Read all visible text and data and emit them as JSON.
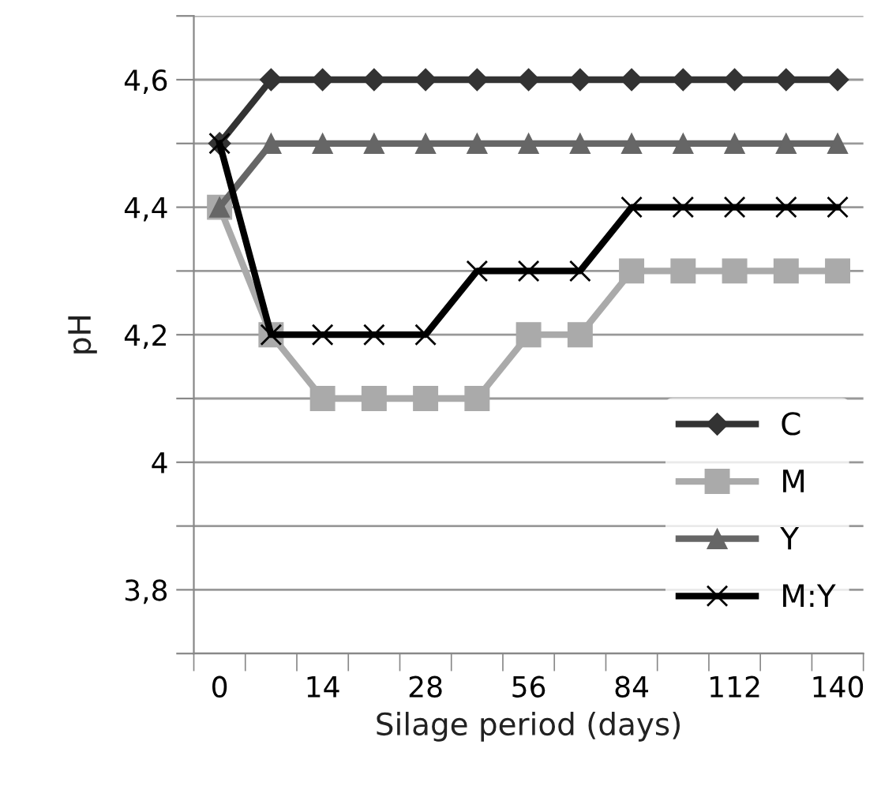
{
  "chart_data": {
    "type": "line",
    "xlabel": "Silage period (days)",
    "ylabel": "pH",
    "categories": [
      "0",
      null,
      "14",
      null,
      "28",
      null,
      "56",
      null,
      "84",
      null,
      "112",
      null,
      "140"
    ],
    "series": [
      {
        "name": "C",
        "color": "#333333",
        "marker": "diamond",
        "values": [
          4.5,
          4.6,
          4.6,
          4.6,
          4.6,
          4.6,
          4.6,
          4.6,
          4.6,
          4.6,
          4.6,
          4.6,
          4.6
        ]
      },
      {
        "name": "M",
        "color": "#aaaaaa",
        "marker": "square",
        "values": [
          4.4,
          4.2,
          4.1,
          4.1,
          4.1,
          4.1,
          4.2,
          4.2,
          4.3,
          4.3,
          4.3,
          4.3,
          4.3
        ]
      },
      {
        "name": "Y",
        "color": "#666666",
        "marker": "triangle",
        "values": [
          4.4,
          4.5,
          4.5,
          4.5,
          4.5,
          4.5,
          4.5,
          4.5,
          4.5,
          4.5,
          4.5,
          4.5,
          4.5
        ]
      },
      {
        "name": "M:Y",
        "color": "#000000",
        "marker": "cross",
        "values": [
          4.5,
          4.2,
          4.2,
          4.2,
          4.2,
          4.3,
          4.3,
          4.3,
          4.4,
          4.4,
          4.4,
          4.4,
          4.4
        ]
      }
    ],
    "ylim": [
      3.7,
      4.7
    ],
    "yticks": [
      {
        "value": 3.7,
        "label": null
      },
      {
        "value": 3.8,
        "label": "3,8"
      },
      {
        "value": 3.9,
        "label": null
      },
      4,
      {
        "value": 4.1,
        "label": null
      },
      {
        "value": 4.2,
        "label": "4,2"
      },
      {
        "value": 4.3,
        "label": null
      },
      {
        "value": 4.4,
        "label": "4,4"
      },
      {
        "value": 4.5,
        "label": null
      },
      {
        "value": 4.6,
        "label": "4,6"
      },
      {
        "value": 4.7,
        "label": null
      }
    ],
    "grid": "y",
    "legend": "bottom right",
    "line_style": "solid"
  }
}
